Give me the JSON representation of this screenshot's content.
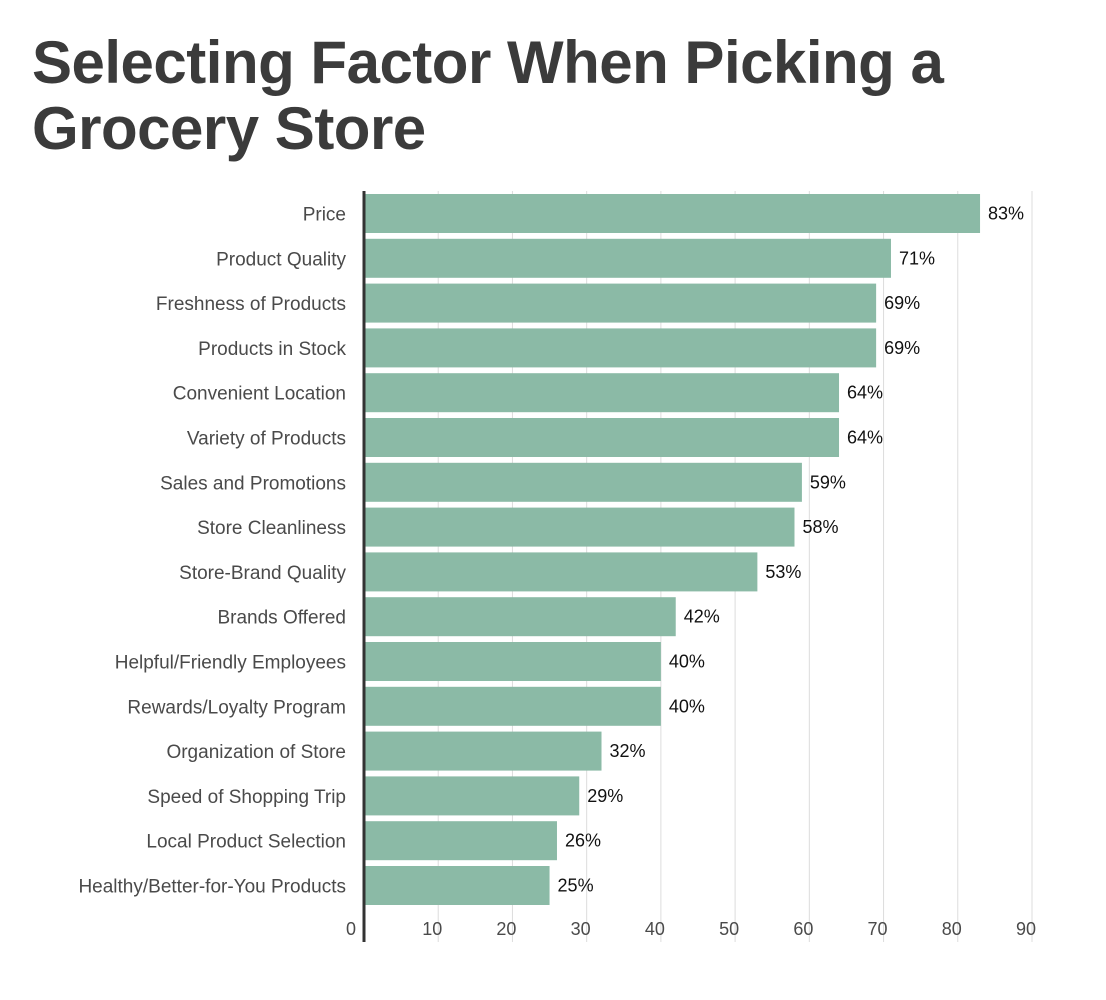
{
  "chart_data": {
    "type": "bar",
    "orientation": "horizontal",
    "title": "Selecting Factor When Picking a Grocery Store",
    "categories": [
      "Price",
      "Product Quality",
      "Freshness of Products",
      "Products in Stock",
      "Convenient Location",
      "Variety of Products",
      "Sales and Promotions",
      "Store Cleanliness",
      "Store-Brand Quality",
      "Brands Offered",
      "Helpful/Friendly Employees",
      "Rewards/Loyalty Program",
      "Organization of Store",
      "Speed of Shopping Trip",
      "Local Product Selection",
      "Healthy/Better-for-You Products"
    ],
    "values": [
      83,
      71,
      69,
      69,
      64,
      64,
      59,
      58,
      53,
      42,
      40,
      40,
      32,
      29,
      26,
      25
    ],
    "value_labels": [
      "83%",
      "71%",
      "69%",
      "69%",
      "64%",
      "64%",
      "59%",
      "58%",
      "53%",
      "42%",
      "40%",
      "40%",
      "32%",
      "29%",
      "26%",
      "25%"
    ],
    "xticks": [
      "0",
      "10",
      "20",
      "30",
      "40",
      "50",
      "60",
      "70",
      "80",
      "90"
    ],
    "xlim": [
      0,
      90
    ],
    "grid": true,
    "bar_color": "#8bbaa6"
  }
}
